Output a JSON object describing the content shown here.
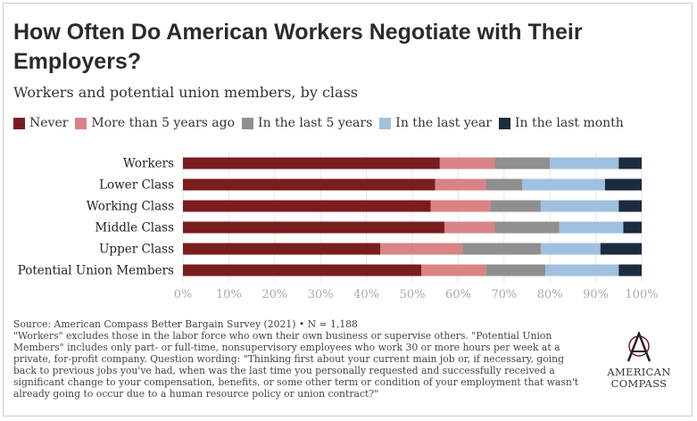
{
  "title": "How Often Do American Workers Negotiate with Their Employers?",
  "subtitle": "Workers and potential union members, by class",
  "source": {
    "line1": "Source: American Compass Better Bargain Survey (2021) • N = 1,188",
    "line2": "\"Workers\" excludes those in the labor force who own their own business or supervise others. \"Potential Union Members\" includes only part- or full-time, nonsupervisory employees who work 30 or more hours per week at a private, for-profit company. Question wording: \"Thinking first about your current main job or, if necessary, going back to previous jobs you've had, when was the last time you personally requested and successfully received a significant change to your compensation, benefits, or some other term or condition of your employment that wasn't already going to occur due to a human resource policy or union contract?\""
  },
  "logo": {
    "line1": "AMERICAN",
    "line2": "COMPASS"
  },
  "colors": {
    "never": "#7b1c1f",
    "more5": "#d98484",
    "last5": "#8f8f8f",
    "lastyear": "#9fc0e0",
    "lastmonth": "#1d2b3f",
    "logo_accent": "#7b1c1f"
  },
  "chart_data": {
    "type": "bar",
    "orientation": "horizontal",
    "stacked": true,
    "categories": [
      "Workers",
      "Lower Class",
      "Working Class",
      "Middle Class",
      "Upper Class",
      "Potential Union Members"
    ],
    "series": [
      {
        "name": "Never",
        "color": "#7b1c1f",
        "values": [
          56,
          55,
          54,
          57,
          43,
          52
        ]
      },
      {
        "name": "More than 5 years ago",
        "color": "#d98484",
        "values": [
          12,
          11,
          13,
          11,
          18,
          14
        ]
      },
      {
        "name": "In the last 5 years",
        "color": "#8f8f8f",
        "values": [
          12,
          8,
          11,
          14,
          17,
          13
        ]
      },
      {
        "name": "In the last year",
        "color": "#9fc0e0",
        "values": [
          15,
          18,
          17,
          14,
          13,
          16
        ]
      },
      {
        "name": "In the last month",
        "color": "#1d2b3f",
        "values": [
          5,
          8,
          5,
          4,
          9,
          5
        ]
      }
    ],
    "xlim": [
      0,
      100
    ],
    "xticks": [
      "0%",
      "10%",
      "20%",
      "30%",
      "40%",
      "50%",
      "60%",
      "70%",
      "80%",
      "90%",
      "100%"
    ],
    "grid": true,
    "legend": "top-left"
  }
}
